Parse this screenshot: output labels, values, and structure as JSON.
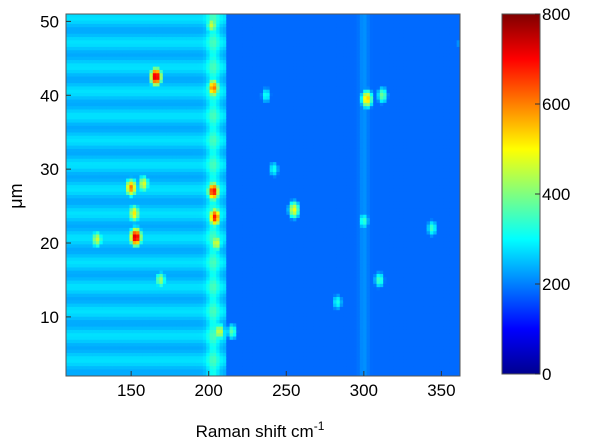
{
  "chart_data": {
    "type": "heatmap",
    "xlabel": "Raman shift cm",
    "xlabel_superscript": "-1",
    "ylabel": "μm",
    "xlim": [
      108,
      362
    ],
    "ylim": [
      2,
      51
    ],
    "xticks": [
      150,
      200,
      250,
      300,
      350
    ],
    "yticks": [
      10,
      20,
      30,
      40,
      50
    ],
    "colorbar": {
      "min": 0,
      "max": 800,
      "ticks": [
        0,
        200,
        400,
        600,
        800
      ],
      "colormap": "jet"
    },
    "background_level": 150,
    "left_region_level": 220,
    "left_region_xmax": 212,
    "hot_spots": [
      {
        "x": 166,
        "y": 42.5,
        "value": 790
      },
      {
        "x": 203,
        "y": 41,
        "value": 640
      },
      {
        "x": 302,
        "y": 39.5,
        "value": 560
      },
      {
        "x": 312,
        "y": 40,
        "value": 380
      },
      {
        "x": 364,
        "y": 47,
        "value": 320
      },
      {
        "x": 203,
        "y": 27,
        "value": 740
      },
      {
        "x": 204,
        "y": 23.5,
        "value": 710
      },
      {
        "x": 150,
        "y": 27.5,
        "value": 620
      },
      {
        "x": 153,
        "y": 20.8,
        "value": 790
      },
      {
        "x": 152,
        "y": 24,
        "value": 520
      },
      {
        "x": 158,
        "y": 28,
        "value": 480
      },
      {
        "x": 255,
        "y": 24.5,
        "value": 500
      },
      {
        "x": 205,
        "y": 20,
        "value": 480
      },
      {
        "x": 207,
        "y": 8,
        "value": 470
      },
      {
        "x": 128,
        "y": 20.5,
        "value": 460
      },
      {
        "x": 300,
        "y": 23,
        "value": 330
      },
      {
        "x": 310,
        "y": 15,
        "value": 340
      },
      {
        "x": 283,
        "y": 12,
        "value": 300
      },
      {
        "x": 344,
        "y": 22,
        "value": 330
      },
      {
        "x": 202,
        "y": 49.5,
        "value": 460
      },
      {
        "x": 215,
        "y": 8,
        "value": 360
      },
      {
        "x": 237,
        "y": 40,
        "value": 300
      },
      {
        "x": 242,
        "y": 30,
        "value": 300
      },
      {
        "x": 169,
        "y": 15,
        "value": 420
      }
    ]
  }
}
